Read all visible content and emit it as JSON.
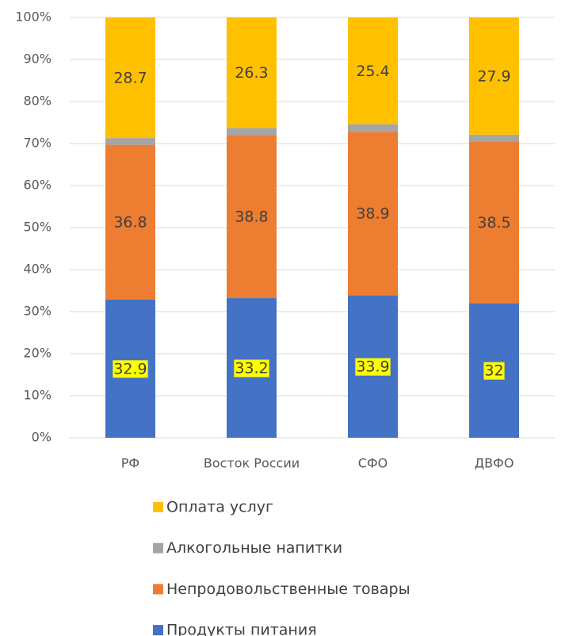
{
  "chart_data": {
    "type": "stacked_bar",
    "categories": [
      "РФ",
      "Восток России",
      "СФО",
      "ДВФО"
    ],
    "series": [
      {
        "name": "Продукты питания",
        "color": "#4472c4",
        "values": [
          32.9,
          33.2,
          33.9,
          32
        ],
        "show_labels": true,
        "label_bg": "#ffff00"
      },
      {
        "name": "Непродовольственные товары",
        "color": "#ed7d31",
        "values": [
          36.8,
          38.8,
          38.9,
          38.5
        ],
        "show_labels": true
      },
      {
        "name": "Алкогольные напитки",
        "color": "#a5a5a5",
        "values": [
          1.6,
          1.7,
          1.8,
          1.6
        ],
        "show_labels": false
      },
      {
        "name": "Оплата услуг",
        "color": "#ffc000",
        "values": [
          28.7,
          26.3,
          25.4,
          27.9
        ],
        "show_labels": true
      }
    ],
    "ylim": [
      0,
      100
    ],
    "yticks": [
      {
        "value": 0,
        "label": "0%"
      },
      {
        "value": 10,
        "label": "10%"
      },
      {
        "value": 20,
        "label": "20%"
      },
      {
        "value": 30,
        "label": "30%"
      },
      {
        "value": 40,
        "label": "40%"
      },
      {
        "value": 50,
        "label": "50%"
      },
      {
        "value": 60,
        "label": "60%"
      },
      {
        "value": 70,
        "label": "70%"
      },
      {
        "value": 80,
        "label": "80%"
      },
      {
        "value": 90,
        "label": "90%"
      },
      {
        "value": 100,
        "label": "100%"
      }
    ],
    "grid": true,
    "legend": "bottom"
  }
}
